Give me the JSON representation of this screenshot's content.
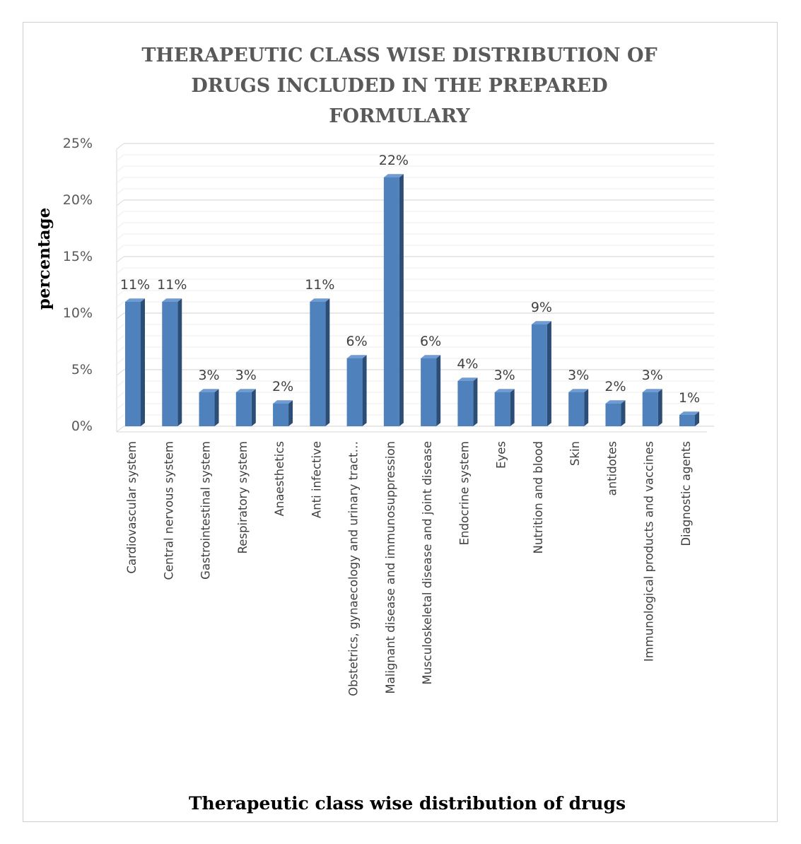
{
  "chart_data": {
    "type": "bar",
    "title_lines": [
      "THERAPEUTIC CLASS WISE DISTRIBUTION OF",
      "DRUGS INCLUDED IN THE PREPARED",
      "FORMULARY"
    ],
    "ylabel": "percentage",
    "xlabel": "Therapeutic class wise distribution of drugs",
    "ylim": [
      0,
      25
    ],
    "yticks": [
      "0%",
      "5%",
      "10%",
      "15%",
      "20%",
      "25%"
    ],
    "grid": true,
    "three_d": true,
    "bar_color": "#4f81bd",
    "categories": [
      "Cardiovascular system",
      "Central nervous system",
      "Gastrointestinal system",
      "Respiratory system",
      "Anaesthetics",
      "Anti infective",
      "Obstetrics, gynaecology and urinary tract…",
      "Malignant disease and immunosuppression",
      "Musculoskeletal disease and joint disease",
      "Endocrine system",
      "Eyes",
      "Nutrition and blood",
      "Skin",
      "antidotes",
      "Immunological products and vaccines",
      "Diagnostic agents"
    ],
    "values": [
      11,
      11,
      3,
      3,
      2,
      11,
      6,
      22,
      6,
      4,
      3,
      9,
      3,
      2,
      3,
      1
    ],
    "data_labels": [
      "11%",
      "11%",
      "3%",
      "3%",
      "2%",
      "11%",
      "6%",
      "22%",
      "6%",
      "4%",
      "3%",
      "9%",
      "3%",
      "2%",
      "3%",
      "1%"
    ]
  }
}
